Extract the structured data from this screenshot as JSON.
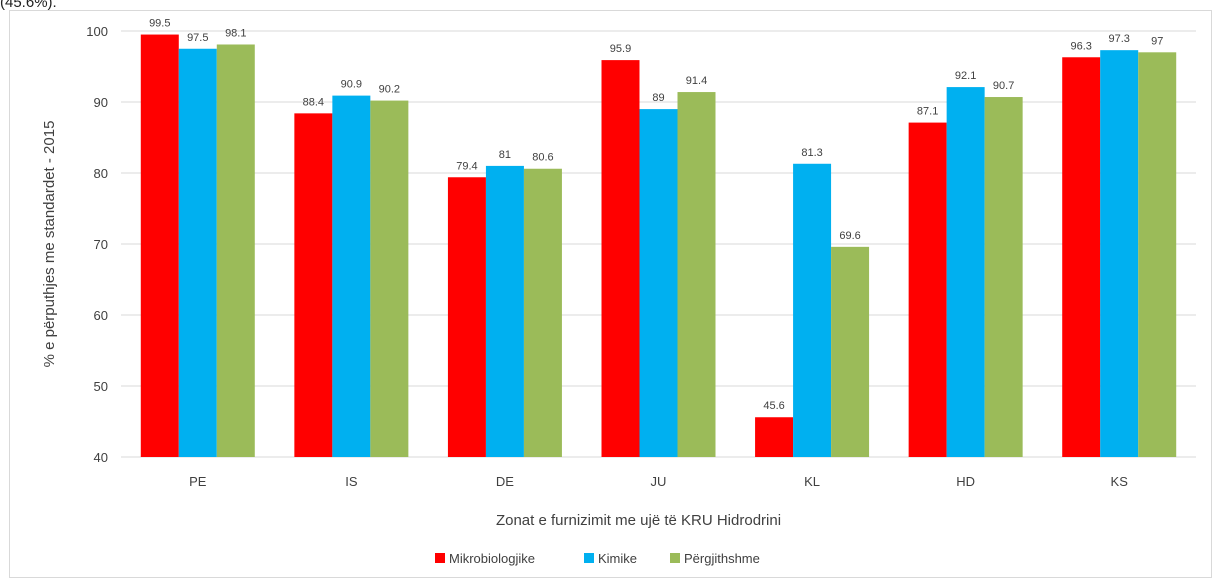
{
  "caption_fragment": "(45.6%).",
  "colors": {
    "series": [
      "#ff0000",
      "#00b0f0",
      "#9bbb59"
    ],
    "grid": "#d9d9d9",
    "text": "#404040"
  },
  "chart_data": {
    "type": "bar",
    "title": "",
    "xlabel": "Zonat e furnizimit me ujë të KRU Hidrodrini",
    "ylabel": "% e përputhjes me standardet - 2015",
    "ylim": [
      40,
      100
    ],
    "yticks": [
      40,
      50,
      60,
      70,
      80,
      90,
      100
    ],
    "grid": true,
    "legend": "bottom",
    "categories": [
      "PE",
      "IS",
      "DE",
      "JU",
      "KL",
      "HD",
      "KS"
    ],
    "series": [
      {
        "name": "Mikrobiologjike",
        "values": [
          99.5,
          88.4,
          79.4,
          95.9,
          45.6,
          87.1,
          96.3
        ]
      },
      {
        "name": "Kimike",
        "values": [
          97.5,
          90.9,
          81,
          89,
          81.3,
          92.1,
          97.3
        ]
      },
      {
        "name": "Përgjithshme",
        "values": [
          98.1,
          90.2,
          80.6,
          91.4,
          69.6,
          90.7,
          97
        ]
      }
    ]
  }
}
